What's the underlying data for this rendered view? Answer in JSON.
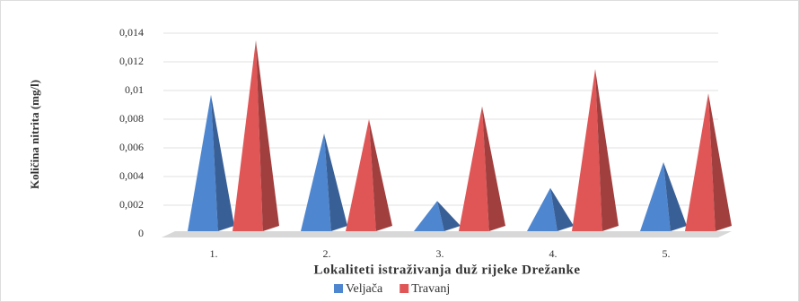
{
  "chart_data": {
    "type": "pyramid",
    "y_label": "Količina nitrita (mg/l)",
    "x_label": "Lokaliteti istraživanja duž rijeke Drežanke",
    "categories": [
      "1.",
      "2.",
      "3.",
      "4.",
      "5."
    ],
    "series": [
      {
        "name": "Veljača",
        "color": "#4f86d0",
        "values": [
          0.0097,
          0.007,
          0.0023,
          0.0032,
          0.005
        ]
      },
      {
        "name": "Travanj",
        "color": "#e05656",
        "values": [
          0.0135,
          0.008,
          0.0089,
          0.0115,
          0.0098
        ]
      }
    ],
    "ylim": [
      0,
      0.014
    ],
    "yticks": [
      0,
      {
        "value": 0.002,
        "label": "0,002"
      },
      {
        "value": 0.004,
        "label": "0,004"
      },
      {
        "value": 0.006,
        "label": "0,006"
      },
      {
        "value": 0.008,
        "label": "0,008"
      },
      {
        "value": 0.01,
        "label": "0,01"
      },
      {
        "value": 0.012,
        "label": "0,012"
      },
      {
        "value": 0.014,
        "label": "0,014"
      }
    ],
    "grid": true
  }
}
